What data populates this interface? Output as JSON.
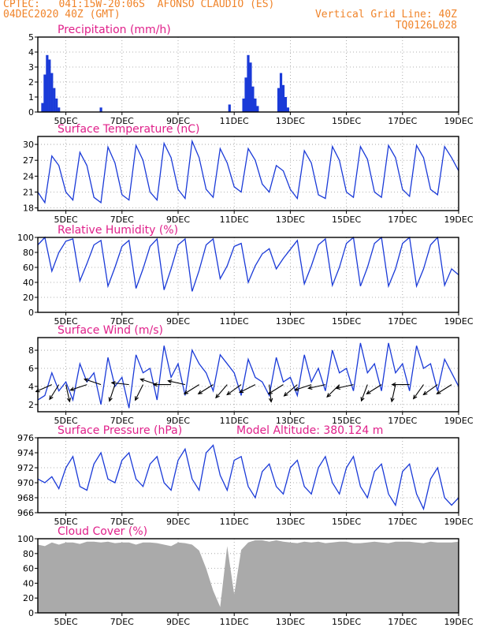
{
  "header": {
    "line1_left": "CPTEC:   041:15W-20:06S  AFONSO CLAUDIO (ES)",
    "line2_left": "04DEC2020 40Z (GMT)",
    "line1_right": "Vertical Grid Line: 40Z",
    "line2_right": "TQ0126L028"
  },
  "colors": {
    "header": "#f0842a",
    "title": "#e0208a",
    "line": "#1a3ad8",
    "bar": "#1a3ad8",
    "cloud": "#aaaaaa",
    "wind_arrow": "#000000"
  },
  "x_ticks": [
    "5DEC",
    "7DEC",
    "9DEC",
    "11DEC",
    "13DEC",
    "15DEC",
    "17DEC",
    "19DEC"
  ],
  "chart_data": [
    {
      "type": "bar",
      "title": "Precipitation (mm/h)",
      "ylim": [
        0,
        5
      ],
      "yticks": [
        0,
        1,
        2,
        3,
        4,
        5
      ],
      "x": [
        "04DEC 04Z",
        "04DEC 06Z",
        "04DEC 08Z",
        "04DEC 10Z",
        "04DEC 12Z",
        "04DEC 14Z",
        "04DEC 16Z",
        "04DEC 18Z",
        "06DEC 06Z",
        "10DEC 20Z",
        "11DEC 08Z",
        "11DEC 10Z",
        "11DEC 12Z",
        "11DEC 14Z",
        "11DEC 16Z",
        "11DEC 18Z",
        "11DEC 20Z",
        "12DEC 14Z",
        "12DEC 16Z",
        "12DEC 18Z",
        "12DEC 20Z",
        "12DEC 22Z"
      ],
      "values": [
        0.6,
        2.5,
        3.8,
        3.5,
        2.6,
        1.6,
        0.9,
        0.3,
        0.3,
        0.5,
        0.9,
        2.3,
        3.8,
        3.3,
        1.7,
        0.9,
        0.4,
        1.6,
        2.6,
        1.8,
        1.0,
        0.3
      ]
    },
    {
      "type": "line",
      "title": "Surface Temperature (nC)",
      "ylim": [
        17.5,
        31.5
      ],
      "yticks": [
        18,
        21,
        24,
        27,
        30
      ],
      "x": [
        "04DEC 00Z",
        "04DEC 06Z",
        "04DEC 12Z",
        "04DEC 18Z",
        "05DEC 00Z",
        "05DEC 06Z",
        "05DEC 12Z",
        "05DEC 18Z",
        "06DEC 00Z",
        "06DEC 06Z",
        "06DEC 12Z",
        "06DEC 18Z",
        "07DEC 00Z",
        "07DEC 06Z",
        "07DEC 12Z",
        "07DEC 18Z",
        "08DEC 00Z",
        "08DEC 06Z",
        "08DEC 12Z",
        "08DEC 18Z",
        "09DEC 00Z",
        "09DEC 06Z",
        "09DEC 12Z",
        "09DEC 18Z",
        "10DEC 00Z",
        "10DEC 06Z",
        "10DEC 12Z",
        "10DEC 18Z",
        "11DEC 00Z",
        "11DEC 06Z",
        "11DEC 12Z",
        "11DEC 18Z",
        "12DEC 00Z",
        "12DEC 06Z",
        "12DEC 12Z",
        "12DEC 18Z",
        "13DEC 00Z",
        "13DEC 06Z",
        "13DEC 12Z",
        "13DEC 18Z",
        "14DEC 00Z",
        "14DEC 06Z",
        "14DEC 12Z",
        "14DEC 18Z",
        "15DEC 00Z",
        "15DEC 06Z",
        "15DEC 12Z",
        "15DEC 18Z",
        "16DEC 00Z",
        "16DEC 06Z",
        "16DEC 12Z",
        "16DEC 18Z",
        "17DEC 00Z",
        "17DEC 06Z",
        "17DEC 12Z",
        "17DEC 18Z",
        "18DEC 00Z",
        "18DEC 06Z",
        "18DEC 12Z",
        "18DEC 18Z",
        "19DEC 00Z"
      ],
      "values": [
        21,
        19,
        27.8,
        26,
        21,
        19.5,
        28.5,
        26,
        20,
        19,
        29.5,
        26.5,
        20.5,
        19.5,
        29.8,
        27,
        21,
        19.5,
        30.2,
        27.5,
        21.5,
        19.8,
        30.6,
        27.5,
        21.5,
        20,
        29.2,
        26.5,
        22,
        21,
        29.2,
        27,
        22.5,
        21,
        26,
        25,
        21.5,
        19.8,
        28.8,
        26.5,
        20.5,
        19.8,
        29.6,
        27,
        21,
        20,
        29.6,
        27.2,
        21,
        20,
        29.8,
        27.5,
        21.5,
        20.2,
        29.8,
        27.5,
        21.5,
        20.5,
        29.6,
        27.5,
        25
      ]
    },
    {
      "type": "line",
      "title": "Relative Humidity (%)",
      "ylim": [
        0,
        100
      ],
      "yticks": [
        0,
        20,
        40,
        60,
        80,
        100
      ],
      "x": [
        "04DEC 00Z",
        "04DEC 06Z",
        "04DEC 12Z",
        "04DEC 18Z",
        "05DEC 00Z",
        "05DEC 06Z",
        "05DEC 12Z",
        "05DEC 18Z",
        "06DEC 00Z",
        "06DEC 06Z",
        "06DEC 12Z",
        "06DEC 18Z",
        "07DEC 00Z",
        "07DEC 06Z",
        "07DEC 12Z",
        "07DEC 18Z",
        "08DEC 00Z",
        "08DEC 06Z",
        "08DEC 12Z",
        "08DEC 18Z",
        "09DEC 00Z",
        "09DEC 06Z",
        "09DEC 12Z",
        "09DEC 18Z",
        "10DEC 00Z",
        "10DEC 06Z",
        "10DEC 12Z",
        "10DEC 18Z",
        "11DEC 00Z",
        "11DEC 06Z",
        "11DEC 12Z",
        "11DEC 18Z",
        "12DEC 00Z",
        "12DEC 06Z",
        "12DEC 12Z",
        "12DEC 18Z",
        "13DEC 00Z",
        "13DEC 06Z",
        "13DEC 12Z",
        "13DEC 18Z",
        "14DEC 00Z",
        "14DEC 06Z",
        "14DEC 12Z",
        "14DEC 18Z",
        "15DEC 00Z",
        "15DEC 06Z",
        "15DEC 12Z",
        "15DEC 18Z",
        "16DEC 00Z",
        "16DEC 06Z",
        "16DEC 12Z",
        "16DEC 18Z",
        "17DEC 00Z",
        "17DEC 06Z",
        "17DEC 12Z",
        "17DEC 18Z",
        "18DEC 00Z",
        "18DEC 06Z",
        "18DEC 12Z",
        "18DEC 18Z",
        "19DEC 00Z"
      ],
      "values": [
        90,
        100,
        55,
        80,
        95,
        98,
        42,
        65,
        90,
        96,
        35,
        60,
        88,
        96,
        32,
        58,
        88,
        98,
        30,
        58,
        90,
        98,
        28,
        56,
        90,
        98,
        45,
        62,
        88,
        92,
        40,
        62,
        78,
        85,
        58,
        72,
        84,
        96,
        38,
        62,
        90,
        98,
        36,
        60,
        92,
        100,
        35,
        60,
        92,
        100,
        35,
        58,
        92,
        100,
        35,
        58,
        90,
        100,
        36,
        58,
        50
      ]
    },
    {
      "type": "line",
      "title": "Surface Wind (m/s)",
      "ylim": [
        1.2,
        9.4
      ],
      "yticks": [
        2,
        4,
        6,
        8
      ],
      "x": [
        "04DEC 00Z",
        "04DEC 06Z",
        "04DEC 12Z",
        "04DEC 18Z",
        "05DEC 00Z",
        "05DEC 06Z",
        "05DEC 12Z",
        "05DEC 18Z",
        "06DEC 00Z",
        "06DEC 06Z",
        "06DEC 12Z",
        "06DEC 18Z",
        "07DEC 00Z",
        "07DEC 06Z",
        "07DEC 12Z",
        "07DEC 18Z",
        "08DEC 00Z",
        "08DEC 06Z",
        "08DEC 12Z",
        "08DEC 18Z",
        "09DEC 00Z",
        "09DEC 06Z",
        "09DEC 12Z",
        "09DEC 18Z",
        "10DEC 00Z",
        "10DEC 06Z",
        "10DEC 12Z",
        "10DEC 18Z",
        "11DEC 00Z",
        "11DEC 06Z",
        "11DEC 12Z",
        "11DEC 18Z",
        "12DEC 00Z",
        "12DEC 06Z",
        "12DEC 12Z",
        "12DEC 18Z",
        "13DEC 00Z",
        "13DEC 06Z",
        "13DEC 12Z",
        "13DEC 18Z",
        "14DEC 00Z",
        "14DEC 06Z",
        "14DEC 12Z",
        "14DEC 18Z",
        "15DEC 00Z",
        "15DEC 06Z",
        "15DEC 12Z",
        "15DEC 18Z",
        "16DEC 00Z",
        "16DEC 06Z",
        "16DEC 12Z",
        "16DEC 18Z",
        "17DEC 00Z",
        "17DEC 06Z",
        "17DEC 12Z",
        "17DEC 18Z",
        "18DEC 00Z",
        "18DEC 06Z",
        "18DEC 12Z",
        "18DEC 18Z",
        "19DEC 00Z"
      ],
      "values": [
        2.5,
        3.0,
        5.5,
        3.5,
        4.5,
        2.5,
        6.5,
        4.5,
        5.5,
        2.0,
        7.2,
        4.0,
        5.0,
        1.6,
        7.5,
        5.5,
        6.0,
        2.5,
        8.5,
        5.0,
        6.5,
        3.0,
        8.0,
        6.5,
        5.5,
        3.5,
        7.5,
        6.5,
        5.5,
        3.0,
        7.0,
        5.0,
        4.5,
        3.0,
        7.2,
        4.5,
        5.0,
        3.0,
        7.5,
        4.5,
        6.0,
        3.5,
        8.0,
        5.5,
        6.0,
        3.5,
        8.8,
        5.5,
        6.5,
        3.5,
        8.8,
        5.5,
        6.5,
        3.5,
        8.5,
        6.0,
        6.5,
        3.5,
        7.0,
        5.5,
        4.0
      ]
    },
    {
      "type": "line",
      "title": "Surface Pressure (hPa)",
      "annotation": "Model Altitude: 380.124 m",
      "ylim": [
        966,
        976
      ],
      "yticks": [
        966,
        968,
        970,
        972,
        974,
        976
      ],
      "x": [
        "04DEC 00Z",
        "04DEC 06Z",
        "04DEC 12Z",
        "04DEC 18Z",
        "05DEC 00Z",
        "05DEC 06Z",
        "05DEC 12Z",
        "05DEC 18Z",
        "06DEC 00Z",
        "06DEC 06Z",
        "06DEC 12Z",
        "06DEC 18Z",
        "07DEC 00Z",
        "07DEC 06Z",
        "07DEC 12Z",
        "07DEC 18Z",
        "08DEC 00Z",
        "08DEC 06Z",
        "08DEC 12Z",
        "08DEC 18Z",
        "09DEC 00Z",
        "09DEC 06Z",
        "09DEC 12Z",
        "09DEC 18Z",
        "10DEC 00Z",
        "10DEC 06Z",
        "10DEC 12Z",
        "10DEC 18Z",
        "11DEC 00Z",
        "11DEC 06Z",
        "11DEC 12Z",
        "11DEC 18Z",
        "12DEC 00Z",
        "12DEC 06Z",
        "12DEC 12Z",
        "12DEC 18Z",
        "13DEC 00Z",
        "13DEC 06Z",
        "13DEC 12Z",
        "13DEC 18Z",
        "14DEC 00Z",
        "14DEC 06Z",
        "14DEC 12Z",
        "14DEC 18Z",
        "15DEC 00Z",
        "15DEC 06Z",
        "15DEC 12Z",
        "15DEC 18Z",
        "16DEC 00Z",
        "16DEC 06Z",
        "16DEC 12Z",
        "16DEC 18Z",
        "17DEC 00Z",
        "17DEC 06Z",
        "17DEC 12Z",
        "17DEC 18Z",
        "18DEC 00Z",
        "18DEC 06Z",
        "18DEC 12Z",
        "18DEC 18Z",
        "19DEC 00Z"
      ],
      "values": [
        970.5,
        970.0,
        970.8,
        969.2,
        972.0,
        973.5,
        969.5,
        969.0,
        972.5,
        974.0,
        970.5,
        970.0,
        973.0,
        974.0,
        970.5,
        969.5,
        972.5,
        973.5,
        970.0,
        969.0,
        973.0,
        974.5,
        970.5,
        969.0,
        974.0,
        975.0,
        971.0,
        969.0,
        973.0,
        973.5,
        969.5,
        968.0,
        971.5,
        972.5,
        969.5,
        968.5,
        972.0,
        973.0,
        969.5,
        968.5,
        972.0,
        973.5,
        970.0,
        968.5,
        972.0,
        973.5,
        969.5,
        968.0,
        971.5,
        972.5,
        968.5,
        967.0,
        971.5,
        972.5,
        968.5,
        966.5,
        970.5,
        972.0,
        968.0,
        967.0,
        968.0
      ]
    },
    {
      "type": "area",
      "title": "Cloud Cover (%)",
      "ylim": [
        0,
        100
      ],
      "yticks": [
        0,
        20,
        40,
        60,
        80,
        100
      ],
      "x": [
        "04DEC 00Z",
        "04DEC 06Z",
        "04DEC 12Z",
        "04DEC 18Z",
        "05DEC 00Z",
        "05DEC 06Z",
        "05DEC 12Z",
        "05DEC 18Z",
        "06DEC 00Z",
        "06DEC 06Z",
        "06DEC 12Z",
        "06DEC 18Z",
        "07DEC 00Z",
        "07DEC 06Z",
        "07DEC 12Z",
        "07DEC 18Z",
        "08DEC 00Z",
        "08DEC 06Z",
        "08DEC 12Z",
        "08DEC 18Z",
        "09DEC 00Z",
        "09DEC 06Z",
        "09DEC 12Z",
        "09DEC 18Z",
        "10DEC 00Z",
        "10DEC 06Z",
        "10DEC 12Z",
        "10DEC 18Z",
        "11DEC 00Z",
        "11DEC 06Z",
        "11DEC 12Z",
        "11DEC 18Z",
        "12DEC 00Z",
        "12DEC 06Z",
        "12DEC 12Z",
        "12DEC 18Z",
        "13DEC 00Z",
        "13DEC 06Z",
        "13DEC 12Z",
        "13DEC 18Z",
        "14DEC 00Z",
        "14DEC 06Z",
        "14DEC 12Z",
        "14DEC 18Z",
        "15DEC 00Z",
        "15DEC 06Z",
        "15DEC 12Z",
        "15DEC 18Z",
        "16DEC 00Z",
        "16DEC 06Z",
        "16DEC 12Z",
        "16DEC 18Z",
        "17DEC 00Z",
        "17DEC 06Z",
        "17DEC 12Z",
        "17DEC 18Z",
        "18DEC 00Z",
        "18DEC 06Z",
        "18DEC 12Z",
        "18DEC 18Z",
        "19DEC 00Z"
      ],
      "values": [
        92,
        90,
        95,
        92,
        95,
        95,
        93,
        96,
        96,
        95,
        96,
        94,
        95,
        95,
        92,
        95,
        95,
        94,
        92,
        90,
        95,
        94,
        92,
        84,
        60,
        30,
        8,
        90,
        25,
        85,
        95,
        98,
        98,
        96,
        98,
        96,
        95,
        94,
        96,
        95,
        96,
        94,
        95,
        96,
        96,
        94,
        94,
        95,
        96,
        95,
        94,
        96,
        96,
        96,
        95,
        94,
        96,
        95,
        95,
        95,
        96
      ]
    },
    {
      "type": "scatter",
      "title": "wind direction arrows (Surface Wind panel)",
      "x": [
        "04DEC 12Z",
        "04DEC 18Z",
        "05DEC 00Z",
        "05DEC 18Z",
        "06DEC 06Z",
        "06DEC 18Z",
        "07DEC 06Z",
        "07DEC 18Z",
        "08DEC 06Z",
        "08DEC 18Z",
        "09DEC 06Z",
        "09DEC 18Z",
        "10DEC 06Z",
        "10DEC 18Z",
        "11DEC 06Z",
        "11DEC 18Z",
        "12DEC 06Z",
        "12DEC 18Z",
        "13DEC 06Z",
        "13DEC 18Z",
        "14DEC 06Z",
        "14DEC 18Z",
        "15DEC 06Z",
        "15DEC 18Z",
        "16DEC 06Z",
        "16DEC 18Z",
        "17DEC 06Z",
        "17DEC 18Z",
        "18DEC 06Z",
        "18DEC 18Z"
      ],
      "y": [
        4.2,
        4.2,
        4.2,
        4.2,
        4.2,
        4.2,
        4.2,
        4.2,
        4.2,
        4.2,
        4.2,
        4.2,
        4.2,
        4.2,
        4.2,
        4.2,
        4.2,
        4.2,
        4.2,
        4.2,
        4.2,
        4.2,
        4.2,
        4.2,
        4.2,
        4.2,
        4.2,
        4.2,
        4.2,
        4.2
      ],
      "u": [
        -0.9,
        -0.5,
        0.2,
        -0.9,
        -0.9,
        -0.3,
        -0.9,
        -0.4,
        -0.9,
        -0.9,
        -0.9,
        -0.8,
        -0.8,
        -0.6,
        -0.7,
        -0.8,
        0.1,
        -0.8,
        -0.7,
        -0.9,
        -0.9,
        -0.6,
        -0.9,
        -0.3,
        -0.8,
        -0.2,
        -0.9,
        -0.5,
        -0.7,
        -0.8
      ],
      "v": [
        -0.4,
        -0.8,
        -0.9,
        -0.3,
        0.3,
        -0.9,
        0.1,
        -0.8,
        0.3,
        0.0,
        0.2,
        -0.5,
        -0.5,
        -0.7,
        -0.5,
        -0.4,
        -0.9,
        -0.5,
        -0.6,
        -0.3,
        -0.2,
        -0.6,
        -0.2,
        -0.8,
        -0.5,
        -0.9,
        0.0,
        -0.7,
        -0.5,
        -0.5
      ]
    }
  ]
}
